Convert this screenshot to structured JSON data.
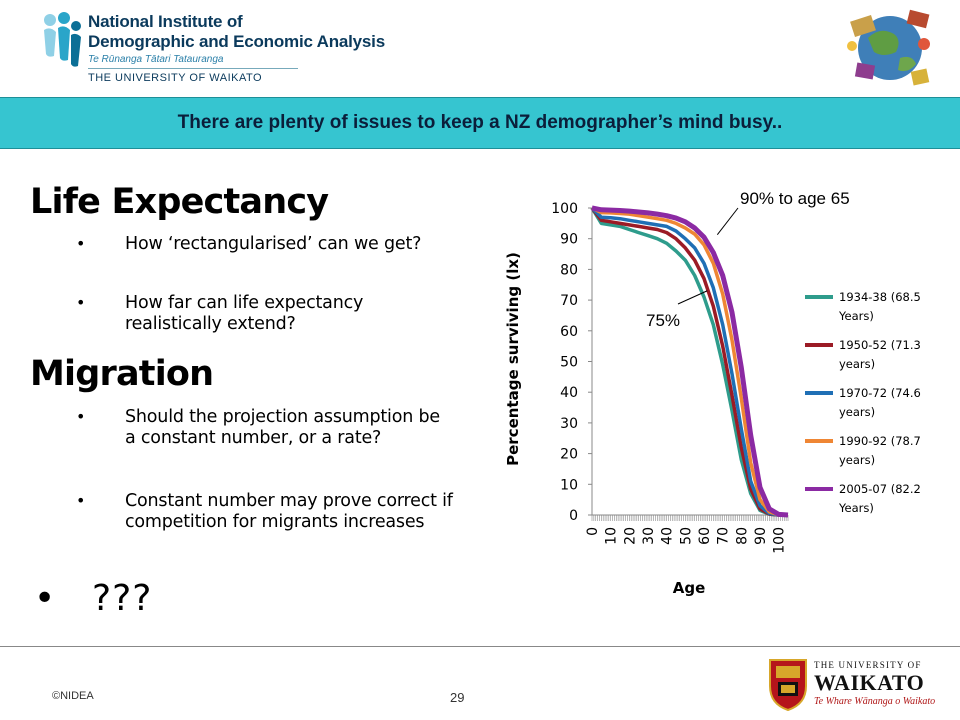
{
  "header": {
    "logo_line1": "National Institute of",
    "logo_line2": "Demographic and Economic Analysis",
    "logo_maori": "Te Rūnanga Tātari Tatauranga",
    "logo_university": "THE UNIVERSITY OF WAIKATO",
    "title": "There are plenty of issues to keep a NZ demographer’s mind busy..",
    "band_color": "#36c5d0"
  },
  "content": {
    "life_heading": "Life Expectancy",
    "life_bullets": [
      "How ‘rectangularised’ can we get?",
      "How far can life expectancy realistically extend?"
    ],
    "migration_heading": "Migration",
    "migration_bullets": [
      "Should the projection assumption be a constant number, or a rate?",
      "Constant number may prove correct if competition for migrants increases"
    ],
    "bullet_symbol": "•",
    "question": "???"
  },
  "chart_data": {
    "type": "line",
    "title": "",
    "xlabel": "Age",
    "ylabel": "Percentage surviving (lx)",
    "xlim": [
      0,
      105
    ],
    "ylim": [
      0,
      100
    ],
    "x_ticks": [
      0,
      10,
      20,
      30,
      40,
      50,
      60,
      70,
      80,
      90,
      100
    ],
    "y_ticks": [
      0,
      10,
      20,
      30,
      40,
      50,
      60,
      70,
      80,
      90,
      100
    ],
    "grid": false,
    "legend_position": "right",
    "x": [
      0,
      5,
      10,
      15,
      20,
      25,
      30,
      35,
      40,
      45,
      50,
      55,
      60,
      65,
      70,
      75,
      80,
      85,
      90,
      95,
      100,
      105
    ],
    "series": [
      {
        "name": "1934-38 (68.5 Years)",
        "color": "#2e9c8c",
        "values": [
          100,
          95,
          94.5,
          94,
          93,
          92,
          91,
          90,
          88.5,
          86,
          83,
          78,
          71,
          62,
          49,
          34,
          18,
          7,
          1.5,
          0.3,
          0,
          0
        ]
      },
      {
        "name": "1950-52 (71.3 years)",
        "color": "#9b1b25",
        "values": [
          100,
          96,
          95.5,
          95,
          94.5,
          94,
          93.5,
          93,
          92,
          90,
          87,
          83,
          77,
          68,
          55,
          39,
          22,
          8.5,
          2,
          0.3,
          0,
          0
        ]
      },
      {
        "name": "1970-72 (74.6 years)",
        "color": "#1f6fb5",
        "values": [
          100,
          97,
          96.8,
          96.5,
          96,
          95.5,
          95,
          94.5,
          94,
          92.5,
          90,
          87,
          82,
          74,
          62,
          46,
          28,
          11,
          3,
          0.5,
          0,
          0
        ]
      },
      {
        "name": "1990-92 (78.7 years)",
        "color": "#ef8634",
        "values": [
          100,
          98.5,
          98.4,
          98.2,
          98,
          97.5,
          97,
          96.5,
          96,
          95,
          93.5,
          91.5,
          88,
          82,
          72,
          57,
          38,
          17,
          5,
          1,
          0,
          0
        ]
      },
      {
        "name": "2005-07 (82.2 Years)",
        "color": "#8b2aa3",
        "values": [
          100,
          99.4,
          99.3,
          99.2,
          99,
          98.7,
          98.4,
          98,
          97.5,
          96.7,
          95.5,
          93.5,
          90.5,
          85.5,
          78,
          66,
          48,
          26,
          9,
          2,
          0.2,
          0
        ]
      }
    ],
    "annotations": [
      {
        "text": "90% to age 65",
        "x": 65,
        "y": 90
      },
      {
        "text": "75%",
        "x": 65,
        "y": 75
      }
    ]
  },
  "footer": {
    "copyright": "©NIDEA",
    "page_number": "29",
    "waikato_l1": "THE UNIVERSITY OF",
    "waikato_l2": "WAIKATO",
    "waikato_l3": "Te Whare Wānanga o Waikato"
  }
}
